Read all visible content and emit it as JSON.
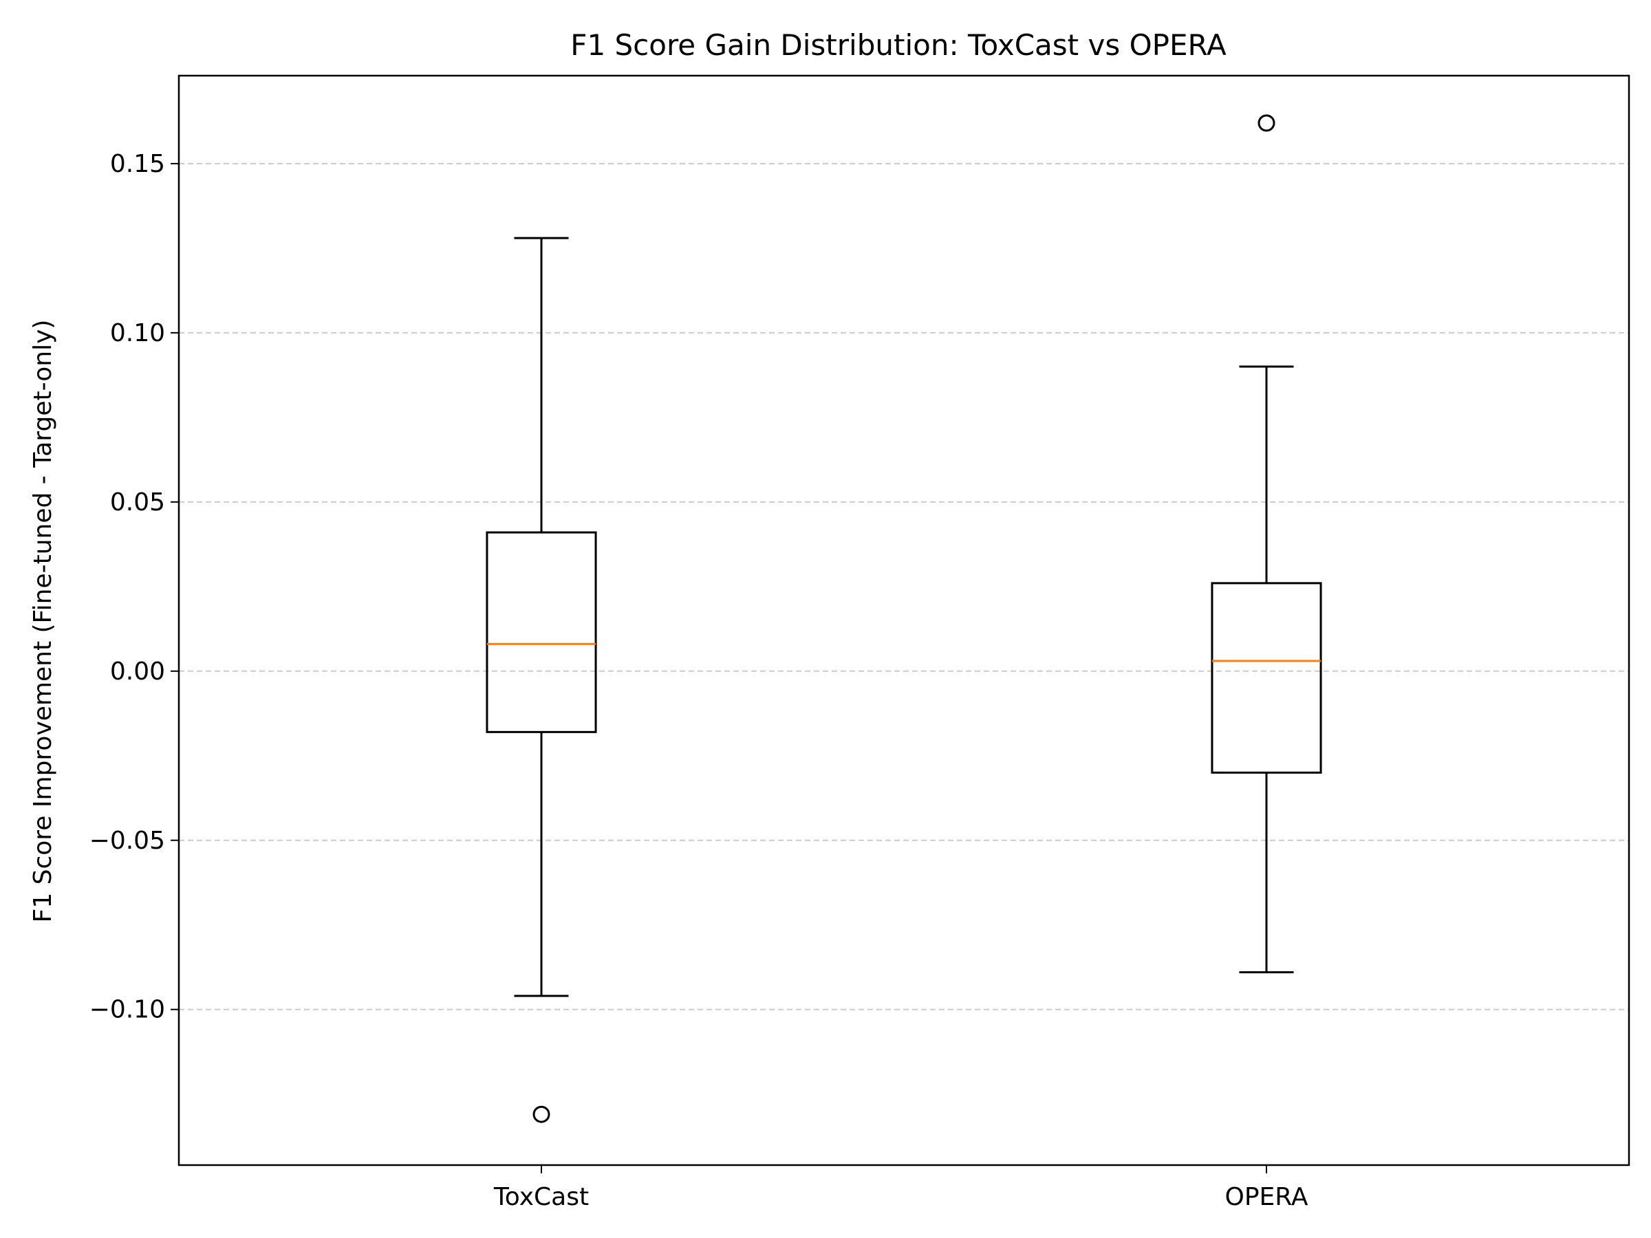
{
  "chart_data": {
    "type": "box",
    "title": "F1 Score Gain Distribution: ToxCast vs OPERA",
    "xlabel": "",
    "ylabel": "F1 Score Improvement (Fine-tuned - Target-only)",
    "ylim": [
      -0.146,
      0.176
    ],
    "yticks": [
      -0.1,
      -0.05,
      0.0,
      0.05,
      0.1,
      0.15
    ],
    "ytick_labels": [
      "−0.10",
      "−0.05",
      "0.00",
      "0.05",
      "0.10",
      "0.15"
    ],
    "grid": "y-dashed",
    "categories": [
      "ToxCast",
      "OPERA"
    ],
    "boxes": [
      {
        "category": "ToxCast",
        "whisker_low": -0.096,
        "q1": -0.018,
        "median": 0.008,
        "q3": 0.041,
        "whisker_high": 0.128,
        "outliers": [
          -0.131
        ]
      },
      {
        "category": "OPERA",
        "whisker_low": -0.089,
        "q1": -0.03,
        "median": 0.003,
        "q3": 0.026,
        "whisker_high": 0.09,
        "outliers": [
          0.162
        ]
      }
    ],
    "colors": {
      "box": "#000000",
      "median": "#ff7f0e",
      "grid": "#cccccc"
    }
  }
}
